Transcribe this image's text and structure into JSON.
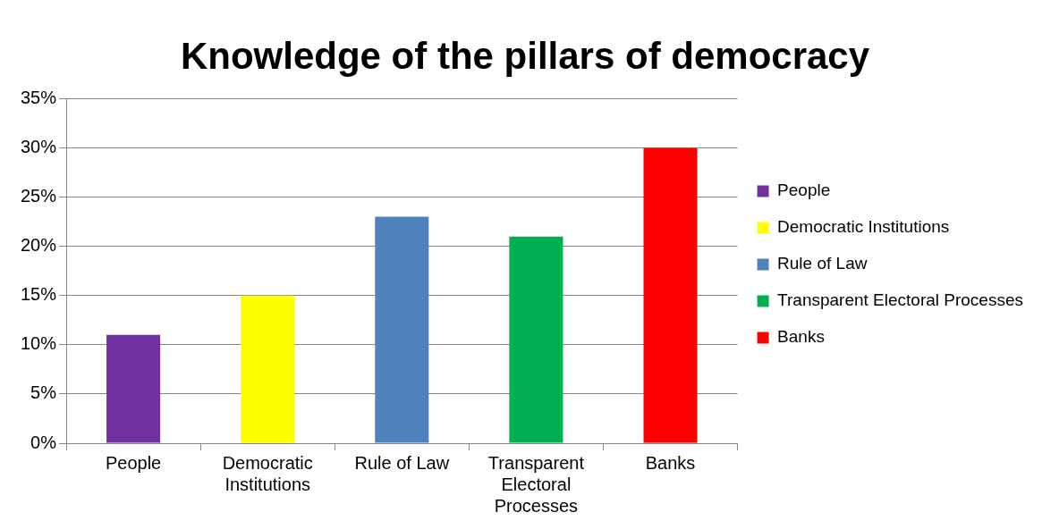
{
  "chart_data": {
    "type": "bar",
    "title": "Knowledge of the pillars of democracy",
    "categories": [
      "People",
      "Democratic Institutions",
      "Rule of Law",
      "Transparent Electoral Processes",
      "Banks"
    ],
    "series": [
      {
        "name": "People",
        "color": "#7030a0",
        "values": [
          0.11,
          null,
          null,
          null,
          null
        ]
      },
      {
        "name": "Democratic Institutions",
        "color": "#ffff00",
        "values": [
          null,
          0.15,
          null,
          null,
          null
        ]
      },
      {
        "name": "Rule of Law",
        "color": "#4f81bd",
        "values": [
          null,
          null,
          0.23,
          null,
          null
        ]
      },
      {
        "name": "Transparent Electoral Processes",
        "color": "#00b050",
        "values": [
          null,
          null,
          null,
          0.21,
          null
        ]
      },
      {
        "name": "Banks",
        "color": "#ff0000",
        "values": [
          null,
          null,
          null,
          null,
          0.3
        ]
      }
    ],
    "ylim": [
      0,
      0.35
    ],
    "yticks": [
      {
        "value": 0,
        "label": "0%"
      },
      {
        "value": 0.05,
        "label": "5%"
      },
      {
        "value": 0.1,
        "label": "10%"
      },
      {
        "value": 0.15,
        "label": "15%"
      },
      {
        "value": 0.2,
        "label": "20%"
      },
      {
        "value": 0.25,
        "label": "25%"
      },
      {
        "value": 0.3,
        "label": "30%"
      },
      {
        "value": 0.35,
        "label": "35%"
      }
    ],
    "grid": "y",
    "legend": "right"
  }
}
